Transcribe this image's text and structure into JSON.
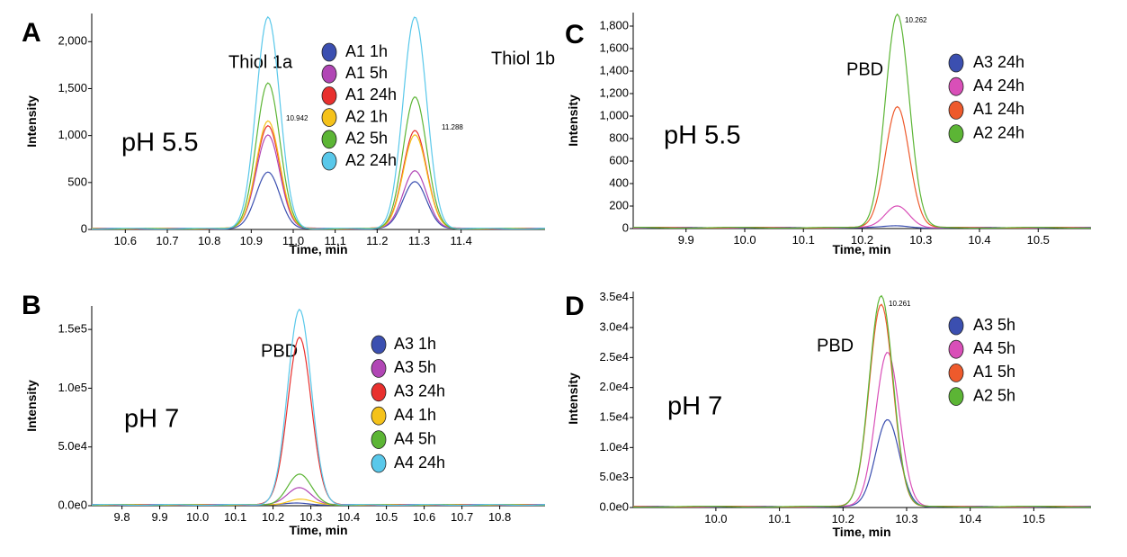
{
  "series_colors": {
    "blue": "#3b4fb0",
    "purple": "#b146b5",
    "magenta": "#d94fb8",
    "red": "#e8302e",
    "orange": "#ee5a2c",
    "yellow": "#f5c21a",
    "green": "#5cb535",
    "cyan": "#59c8ea"
  },
  "chart_data": [
    {
      "type": "line",
      "panel": "A",
      "title": "",
      "condition": "pH 5.5",
      "xlabel": "Time, min",
      "ylabel": "Intensity",
      "xlim": [
        10.52,
        11.6
      ],
      "ylim": [
        0,
        2300
      ],
      "xticks": [
        "10.6",
        "10.7",
        "10.8",
        "10.9",
        "11.0",
        "11.1",
        "11.2",
        "11.3",
        "11.4"
      ],
      "yticks": [
        "0",
        "500",
        "1,000",
        "1,500",
        "2,000"
      ],
      "annotations": [
        "Thiol 1a",
        "Thiol 1b"
      ],
      "peak_times": [
        "10.942",
        "11.288"
      ],
      "series": [
        {
          "name": "A1 1h",
          "color": "blue",
          "peaks": [
            [
              10.94,
              600
            ],
            [
              11.29,
              500
            ]
          ]
        },
        {
          "name": "A1 5h",
          "color": "purple",
          "peaks": [
            [
              10.94,
              1000
            ],
            [
              11.29,
              620
            ]
          ]
        },
        {
          "name": "A1 24h",
          "color": "red",
          "peaks": [
            [
              10.94,
              1100
            ],
            [
              11.29,
              1050
            ]
          ]
        },
        {
          "name": "A2 1h",
          "color": "yellow",
          "peaks": [
            [
              10.94,
              1150
            ],
            [
              11.29,
              1000
            ]
          ]
        },
        {
          "name": "A2 5h",
          "color": "green",
          "peaks": [
            [
              10.94,
              1550
            ],
            [
              11.29,
              1400
            ]
          ]
        },
        {
          "name": "A2 24h",
          "color": "cyan",
          "peaks": [
            [
              10.94,
              2250
            ],
            [
              11.29,
              2250
            ]
          ]
        }
      ]
    },
    {
      "type": "line",
      "panel": "B",
      "title": "",
      "condition": "pH 7",
      "xlabel": "Time, min",
      "ylabel": "Intensity",
      "xlim": [
        9.72,
        10.92
      ],
      "ylim": [
        0,
        170000
      ],
      "xticks": [
        "9.8",
        "9.9",
        "10.0",
        "10.1",
        "10.2",
        "10.3",
        "10.4",
        "10.5",
        "10.6",
        "10.7",
        "10.8"
      ],
      "yticks": [
        "0.0e0",
        "5.0e4",
        "1.0e5",
        "1.5e5"
      ],
      "annotations": [
        "PBD"
      ],
      "series": [
        {
          "name": "A3 1h",
          "color": "blue",
          "peaks": [
            [
              10.27,
              1500
            ]
          ]
        },
        {
          "name": "A3 5h",
          "color": "purple",
          "peaks": [
            [
              10.27,
              15000
            ]
          ]
        },
        {
          "name": "A3 24h",
          "color": "red",
          "peaks": [
            [
              10.27,
              143000
            ]
          ]
        },
        {
          "name": "A4 1h",
          "color": "yellow",
          "peaks": [
            [
              10.27,
              5000
            ]
          ]
        },
        {
          "name": "A4 5h",
          "color": "green",
          "peaks": [
            [
              10.27,
              26000
            ]
          ]
        },
        {
          "name": "A4 24h",
          "color": "cyan",
          "peaks": [
            [
              10.27,
              166000
            ]
          ]
        }
      ]
    },
    {
      "type": "line",
      "panel": "C",
      "title": "",
      "condition": "pH 5.5",
      "xlabel": "Time, min",
      "ylabel": "Intensity",
      "xlim": [
        9.81,
        10.59
      ],
      "ylim": [
        0,
        1920
      ],
      "xticks": [
        "9.9",
        "10.0",
        "10.1",
        "10.2",
        "10.3",
        "10.4",
        "10.5"
      ],
      "yticks": [
        "0",
        "200",
        "400",
        "600",
        "800",
        "1,000",
        "1,200",
        "1,400",
        "1,600",
        "1,800"
      ],
      "annotations": [
        "PBD"
      ],
      "peak_times": [
        "10.262"
      ],
      "series": [
        {
          "name": "A3 24h",
          "color": "blue",
          "peaks": [
            [
              10.26,
              15
            ]
          ]
        },
        {
          "name": "A4 24h",
          "color": "magenta",
          "peaks": [
            [
              10.26,
              195
            ]
          ]
        },
        {
          "name": "A1 24h",
          "color": "orange",
          "peaks": [
            [
              10.26,
              1080
            ]
          ]
        },
        {
          "name": "A2 24h",
          "color": "green",
          "peaks": [
            [
              10.26,
              1900
            ]
          ]
        }
      ]
    },
    {
      "type": "line",
      "panel": "D",
      "title": "",
      "condition": "pH 7",
      "xlabel": "Time, min",
      "ylabel": "Intensity",
      "xlim": [
        9.87,
        10.59
      ],
      "ylim": [
        0,
        36000
      ],
      "xticks": [
        "10.0",
        "10.1",
        "10.2",
        "10.3",
        "10.4",
        "10.5"
      ],
      "yticks": [
        "0.0e0",
        "5.0e3",
        "1.0e4",
        "1.5e4",
        "2.0e4",
        "2.5e4",
        "3.0e4",
        "3.5e4"
      ],
      "annotations": [
        "PBD"
      ],
      "peak_times": [
        "10.261"
      ],
      "series": [
        {
          "name": "A3 5h",
          "color": "blue",
          "peaks": [
            [
              10.27,
              14500
            ]
          ]
        },
        {
          "name": "A4 5h",
          "color": "magenta",
          "peaks": [
            [
              10.27,
              25800
            ]
          ]
        },
        {
          "name": "A1 5h",
          "color": "orange",
          "peaks": [
            [
              10.26,
              33800
            ]
          ]
        },
        {
          "name": "A2 5h",
          "color": "green",
          "peaks": [
            [
              10.26,
              35200
            ]
          ]
        }
      ]
    }
  ]
}
